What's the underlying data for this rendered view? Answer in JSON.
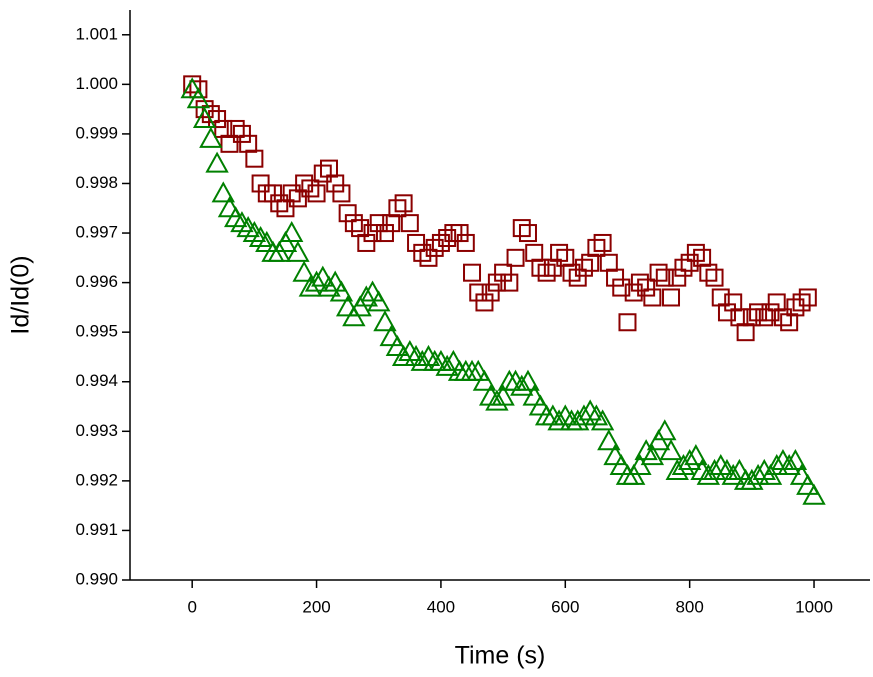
{
  "chart_data": {
    "type": "scatter",
    "x_label": "Time (s)",
    "y_label": "Id/Id(0)",
    "xlim": [
      -100,
      1090
    ],
    "ylim": [
      0.99,
      1.0015
    ],
    "xticks": [
      0,
      200,
      400,
      600,
      800,
      1000
    ],
    "yticks": [
      {
        "value": 0.99,
        "label": "0.990"
      },
      {
        "value": 0.991,
        "label": "0.991"
      },
      {
        "value": 0.992,
        "label": "0.992"
      },
      {
        "value": 0.993,
        "label": "0.993"
      },
      {
        "value": 0.994,
        "label": "0.994"
      },
      {
        "value": 0.995,
        "label": "0.995"
      },
      {
        "value": 0.996,
        "label": "0.996"
      },
      {
        "value": 0.997,
        "label": "0.997"
      },
      {
        "value": 0.998,
        "label": "0.998"
      },
      {
        "value": 0.999,
        "label": "0.999"
      },
      {
        "value": 1.0,
        "label": "1.000"
      },
      {
        "value": 1.001,
        "label": "1.001"
      }
    ],
    "grid": false,
    "series": [
      {
        "marker": "square",
        "color": "#8b0000",
        "x": [
          0,
          10,
          20,
          30,
          40,
          50,
          60,
          70,
          80,
          90,
          100,
          110,
          120,
          130,
          140,
          150,
          160,
          170,
          180,
          190,
          200,
          210,
          220,
          230,
          240,
          250,
          260,
          270,
          280,
          290,
          300,
          310,
          320,
          330,
          340,
          350,
          360,
          370,
          380,
          390,
          400,
          410,
          420,
          430,
          440,
          450,
          460,
          470,
          480,
          490,
          500,
          510,
          520,
          530,
          540,
          550,
          560,
          570,
          580,
          590,
          600,
          610,
          620,
          630,
          640,
          650,
          660,
          670,
          680,
          690,
          700,
          710,
          720,
          730,
          740,
          750,
          760,
          770,
          780,
          790,
          800,
          810,
          820,
          830,
          840,
          850,
          860,
          870,
          880,
          890,
          900,
          910,
          920,
          930,
          940,
          950,
          960,
          970,
          980,
          990
        ],
        "values": [
          1.0,
          0.9999,
          0.9995,
          0.9994,
          0.9993,
          0.9991,
          0.9988,
          0.9991,
          0.999,
          0.9988,
          0.9985,
          0.998,
          0.9978,
          0.9978,
          0.9976,
          0.9975,
          0.9978,
          0.9977,
          0.998,
          0.9979,
          0.9978,
          0.9982,
          0.9983,
          0.998,
          0.9978,
          0.9974,
          0.9972,
          0.9971,
          0.9968,
          0.997,
          0.9972,
          0.997,
          0.9972,
          0.9975,
          0.9976,
          0.9972,
          0.9968,
          0.9966,
          0.9965,
          0.9967,
          0.9968,
          0.9969,
          0.997,
          0.997,
          0.9968,
          0.9962,
          0.9958,
          0.9956,
          0.9958,
          0.996,
          0.9962,
          0.996,
          0.9965,
          0.9971,
          0.997,
          0.9966,
          0.9963,
          0.9962,
          0.9963,
          0.9966,
          0.9965,
          0.9962,
          0.9961,
          0.9963,
          0.9964,
          0.9967,
          0.9968,
          0.9964,
          0.9961,
          0.9959,
          0.9952,
          0.9958,
          0.996,
          0.9959,
          0.9957,
          0.9962,
          0.9961,
          0.9957,
          0.9961,
          0.9963,
          0.9964,
          0.9966,
          0.9965,
          0.9962,
          0.9961,
          0.9957,
          0.9954,
          0.9956,
          0.9953,
          0.995,
          0.9953,
          0.9954,
          0.9953,
          0.9954,
          0.9956,
          0.9953,
          0.9952,
          0.9955,
          0.9956,
          0.9957
        ]
      },
      {
        "marker": "triangle",
        "color": "#008000",
        "x": [
          0,
          10,
          20,
          30,
          40,
          50,
          60,
          70,
          80,
          90,
          100,
          110,
          120,
          130,
          140,
          150,
          160,
          170,
          180,
          190,
          200,
          210,
          220,
          230,
          240,
          250,
          260,
          270,
          280,
          290,
          300,
          310,
          320,
          330,
          340,
          350,
          360,
          370,
          380,
          390,
          400,
          410,
          420,
          430,
          440,
          450,
          460,
          470,
          480,
          490,
          500,
          510,
          520,
          530,
          540,
          550,
          560,
          570,
          580,
          590,
          600,
          610,
          620,
          630,
          640,
          650,
          660,
          670,
          680,
          690,
          700,
          710,
          720,
          730,
          740,
          750,
          760,
          770,
          780,
          790,
          800,
          810,
          820,
          830,
          840,
          850,
          860,
          870,
          880,
          890,
          900,
          910,
          920,
          930,
          940,
          950,
          960,
          970,
          980,
          990,
          1000
        ],
        "values": [
          0.9999,
          0.9997,
          0.9993,
          0.9989,
          0.9984,
          0.9978,
          0.9975,
          0.9973,
          0.9972,
          0.9971,
          0.997,
          0.9969,
          0.9968,
          0.9966,
          0.9966,
          0.9968,
          0.997,
          0.9966,
          0.9962,
          0.9959,
          0.996,
          0.9961,
          0.9959,
          0.996,
          0.9958,
          0.9955,
          0.9953,
          0.9955,
          0.9957,
          0.9958,
          0.9956,
          0.9952,
          0.9949,
          0.9947,
          0.9945,
          0.9946,
          0.9945,
          0.9944,
          0.9945,
          0.9944,
          0.9944,
          0.9943,
          0.9944,
          0.9942,
          0.9942,
          0.9942,
          0.9942,
          0.994,
          0.9937,
          0.9936,
          0.9937,
          0.994,
          0.994,
          0.9939,
          0.994,
          0.9937,
          0.9935,
          0.9933,
          0.9933,
          0.9932,
          0.9933,
          0.9932,
          0.9932,
          0.9933,
          0.9934,
          0.9933,
          0.9932,
          0.9928,
          0.9925,
          0.9923,
          0.9921,
          0.9921,
          0.9923,
          0.9926,
          0.9925,
          0.9928,
          0.993,
          0.9926,
          0.9922,
          0.9923,
          0.9924,
          0.9925,
          0.9922,
          0.9921,
          0.9922,
          0.9923,
          0.9922,
          0.9921,
          0.9922,
          0.992,
          0.992,
          0.9921,
          0.9922,
          0.9921,
          0.9923,
          0.9924,
          0.9923,
          0.9924,
          0.9921,
          0.9919,
          0.9917
        ]
      }
    ]
  }
}
